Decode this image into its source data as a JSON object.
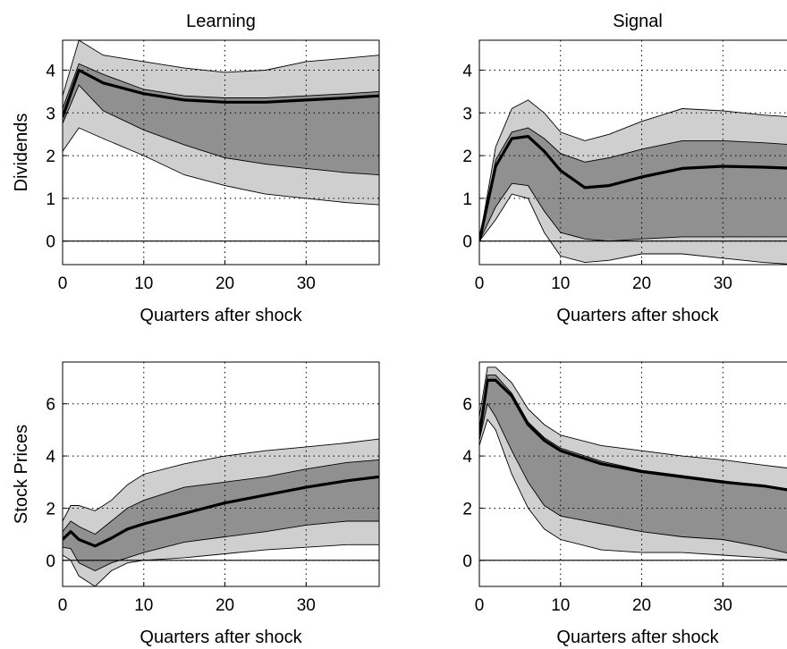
{
  "colors": {
    "outer_band": "#cfcfcf",
    "inner_band": "#909090",
    "median": "#000000",
    "axis": "#000000"
  },
  "chart_data": [
    {
      "type": "area",
      "title": "Learning",
      "xlabel": "Quarters after shock",
      "ylabel": "Dividends",
      "xlim": [
        0,
        39
      ],
      "ylim": [
        -0.55,
        4.7
      ],
      "xticks": [
        "0",
        "10",
        "20",
        "30"
      ],
      "yticks": [
        "0",
        "1",
        "2",
        "3",
        "4"
      ],
      "grid": "dotted",
      "series": [
        {
          "role": "outer-band-upper",
          "x": [
            0,
            2,
            5,
            10,
            15,
            20,
            25,
            30,
            35,
            39
          ],
          "values": [
            3.4,
            4.7,
            4.35,
            4.2,
            4.05,
            3.95,
            4.0,
            4.2,
            4.28,
            4.35
          ]
        },
        {
          "role": "inner-band-upper",
          "x": [
            0,
            2,
            5,
            10,
            15,
            20,
            25,
            30,
            35,
            39
          ],
          "values": [
            3.1,
            4.15,
            3.9,
            3.55,
            3.4,
            3.35,
            3.35,
            3.4,
            3.45,
            3.5
          ]
        },
        {
          "role": "median",
          "x": [
            0,
            2,
            5,
            10,
            15,
            20,
            25,
            30,
            35,
            39
          ],
          "values": [
            2.9,
            4.0,
            3.7,
            3.45,
            3.3,
            3.25,
            3.25,
            3.3,
            3.35,
            3.4
          ]
        },
        {
          "role": "inner-band-lower",
          "x": [
            0,
            2,
            5,
            10,
            15,
            20,
            25,
            30,
            35,
            39
          ],
          "values": [
            2.75,
            3.65,
            3.05,
            2.6,
            2.25,
            1.95,
            1.8,
            1.7,
            1.6,
            1.55
          ]
        },
        {
          "role": "outer-band-lower",
          "x": [
            0,
            2,
            5,
            10,
            15,
            20,
            25,
            30,
            35,
            39
          ],
          "values": [
            2.1,
            2.65,
            2.4,
            2.0,
            1.55,
            1.3,
            1.1,
            1.0,
            0.9,
            0.85
          ]
        }
      ]
    },
    {
      "type": "area",
      "title": "Signal",
      "xlabel": "Quarters after shock",
      "ylabel": "",
      "xlim": [
        0,
        39
      ],
      "ylim": [
        -0.55,
        4.7
      ],
      "xticks": [
        "0",
        "10",
        "20",
        "30"
      ],
      "yticks": [
        "0",
        "1",
        "2",
        "3",
        "4"
      ],
      "grid": "dotted",
      "series": [
        {
          "role": "outer-band-upper",
          "x": [
            0,
            2,
            4,
            6,
            8,
            10,
            13,
            16,
            20,
            25,
            30,
            35,
            39
          ],
          "values": [
            0,
            2.2,
            3.1,
            3.3,
            3.0,
            2.55,
            2.35,
            2.5,
            2.8,
            3.1,
            3.05,
            2.95,
            2.9
          ]
        },
        {
          "role": "inner-band-upper",
          "x": [
            0,
            2,
            4,
            6,
            8,
            10,
            13,
            16,
            20,
            25,
            30,
            35,
            39
          ],
          "values": [
            0,
            1.9,
            2.55,
            2.65,
            2.4,
            2.05,
            1.85,
            1.95,
            2.15,
            2.35,
            2.35,
            2.3,
            2.25
          ]
        },
        {
          "role": "median",
          "x": [
            0,
            2,
            4,
            6,
            8,
            10,
            13,
            16,
            20,
            25,
            30,
            35,
            39
          ],
          "values": [
            0,
            1.75,
            2.4,
            2.45,
            2.1,
            1.65,
            1.25,
            1.3,
            1.5,
            1.7,
            1.75,
            1.73,
            1.7
          ]
        },
        {
          "role": "inner-band-lower",
          "x": [
            0,
            2,
            4,
            6,
            8,
            10,
            13,
            16,
            20,
            25,
            30,
            35,
            39
          ],
          "values": [
            0,
            0.8,
            1.35,
            1.3,
            0.7,
            0.2,
            0.05,
            0.0,
            0.05,
            0.1,
            0.1,
            0.1,
            0.1
          ]
        },
        {
          "role": "outer-band-lower",
          "x": [
            0,
            2,
            4,
            6,
            8,
            10,
            13,
            16,
            20,
            25,
            30,
            35,
            39
          ],
          "values": [
            0,
            0.5,
            1.1,
            1.0,
            0.2,
            -0.35,
            -0.5,
            -0.45,
            -0.3,
            -0.3,
            -0.4,
            -0.5,
            -0.55
          ]
        }
      ]
    },
    {
      "type": "area",
      "title": "",
      "xlabel": "Quarters after shock",
      "ylabel": "Stock Prices",
      "xlim": [
        0,
        39
      ],
      "ylim": [
        -1.0,
        7.6
      ],
      "xticks": [
        "0",
        "10",
        "20",
        "30"
      ],
      "yticks": [
        "0",
        "2",
        "4",
        "6"
      ],
      "grid": "dotted",
      "series": [
        {
          "role": "outer-band-upper",
          "x": [
            0,
            1,
            2,
            4,
            6,
            8,
            10,
            15,
            20,
            25,
            30,
            35,
            39
          ],
          "values": [
            1.5,
            2.1,
            2.1,
            1.9,
            2.3,
            2.9,
            3.3,
            3.7,
            4.0,
            4.2,
            4.35,
            4.5,
            4.65
          ]
        },
        {
          "role": "inner-band-upper",
          "x": [
            0,
            1,
            2,
            4,
            6,
            8,
            10,
            15,
            20,
            25,
            30,
            35,
            39
          ],
          "values": [
            1.1,
            1.5,
            1.3,
            1.0,
            1.5,
            2.0,
            2.3,
            2.8,
            3.0,
            3.2,
            3.5,
            3.75,
            3.85
          ]
        },
        {
          "role": "median",
          "x": [
            0,
            1,
            2,
            4,
            6,
            8,
            10,
            15,
            20,
            25,
            30,
            35,
            39
          ],
          "values": [
            0.8,
            1.1,
            0.8,
            0.55,
            0.85,
            1.2,
            1.4,
            1.8,
            2.2,
            2.5,
            2.8,
            3.05,
            3.2
          ]
        },
        {
          "role": "inner-band-lower",
          "x": [
            0,
            1,
            2,
            4,
            6,
            8,
            10,
            15,
            20,
            25,
            30,
            35,
            39
          ],
          "values": [
            0.5,
            0.45,
            -0.1,
            -0.4,
            -0.1,
            0.1,
            0.3,
            0.7,
            0.9,
            1.1,
            1.35,
            1.5,
            1.5
          ]
        },
        {
          "role": "outer-band-lower",
          "x": [
            0,
            1,
            2,
            4,
            6,
            8,
            10,
            15,
            20,
            25,
            30,
            35,
            39
          ],
          "values": [
            0.2,
            0.0,
            -0.6,
            -1.0,
            -0.4,
            -0.1,
            0.0,
            0.1,
            0.25,
            0.4,
            0.5,
            0.6,
            0.6
          ]
        }
      ]
    },
    {
      "type": "area",
      "title": "",
      "xlabel": "Quarters after shock",
      "ylabel": "",
      "xlim": [
        0,
        39
      ],
      "ylim": [
        -1.0,
        7.6
      ],
      "xticks": [
        "0",
        "10",
        "20",
        "30"
      ],
      "yticks": [
        "0",
        "2",
        "4",
        "6"
      ],
      "grid": "dotted",
      "series": [
        {
          "role": "outer-band-upper",
          "x": [
            0,
            1,
            2,
            4,
            6,
            8,
            10,
            15,
            20,
            25,
            30,
            35,
            39
          ],
          "values": [
            5.5,
            7.4,
            7.4,
            6.8,
            5.8,
            5.2,
            4.8,
            4.4,
            4.2,
            4.0,
            3.85,
            3.65,
            3.5
          ]
        },
        {
          "role": "inner-band-upper",
          "x": [
            0,
            1,
            2,
            4,
            6,
            8,
            10,
            15,
            20,
            25,
            30,
            35,
            39
          ],
          "values": [
            5.0,
            7.1,
            7.1,
            6.4,
            5.3,
            4.7,
            4.3,
            3.8,
            3.45,
            3.25,
            3.05,
            2.85,
            2.7
          ]
        },
        {
          "role": "median",
          "x": [
            0,
            1,
            2,
            4,
            6,
            8,
            10,
            15,
            20,
            25,
            30,
            35,
            39
          ],
          "values": [
            4.8,
            6.9,
            6.9,
            6.3,
            5.2,
            4.6,
            4.2,
            3.7,
            3.4,
            3.2,
            3.0,
            2.85,
            2.65
          ]
        },
        {
          "role": "inner-band-lower",
          "x": [
            0,
            1,
            2,
            4,
            6,
            8,
            10,
            15,
            20,
            25,
            30,
            35,
            39
          ],
          "values": [
            4.6,
            6.0,
            5.5,
            4.2,
            3.0,
            2.1,
            1.7,
            1.4,
            1.1,
            0.9,
            0.8,
            0.5,
            0.2
          ]
        },
        {
          "role": "outer-band-lower",
          "x": [
            0,
            1,
            2,
            4,
            6,
            8,
            10,
            15,
            20,
            25,
            30,
            35,
            39
          ],
          "values": [
            4.4,
            5.4,
            5.0,
            3.3,
            2.0,
            1.2,
            0.8,
            0.4,
            0.3,
            0.3,
            0.2,
            0.1,
            0.0
          ]
        }
      ]
    }
  ]
}
